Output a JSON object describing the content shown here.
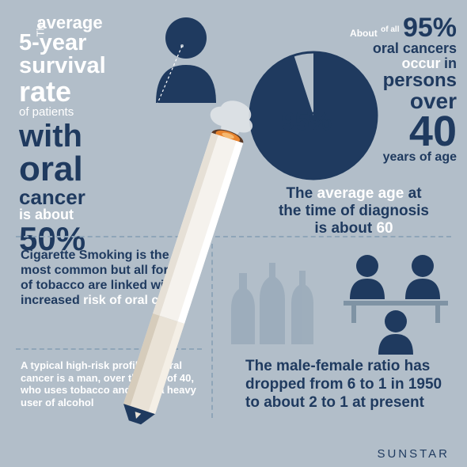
{
  "colors": {
    "bg": "#b2bec9",
    "dark": "#1f3a5f",
    "white": "#ffffff",
    "dash": "#8fa5b8",
    "cig_filter": "#e9e2d6",
    "cig_filter_dark": "#d6ccbb",
    "cig_body": "#f5f2ed",
    "ember": "#e8842f",
    "bottle": "#889bad",
    "table": "#889bad"
  },
  "survival": {
    "l1a": "The",
    "l1b": "average",
    "l2": "5-year",
    "l3": "survival",
    "l4": "rate",
    "l5": "of patients",
    "l6": "with",
    "l7": "oral",
    "l8": "cancer",
    "l9": "is about",
    "l10": "50%"
  },
  "pie": {
    "type": "pie",
    "value": 95,
    "label": "95%",
    "radius": 80,
    "stroke": "#1f3a5f",
    "fill": "#1f3a5f",
    "gap_fill": "#b2bec9"
  },
  "stat95": {
    "l1a": "About",
    "l1b": "of all",
    "l1c": "95%",
    "l2": "oral cancers",
    "l3a": "occur",
    "l3b": "in",
    "l4": "persons",
    "l5": "over",
    "l6": "40",
    "l7": "years of age"
  },
  "avg_age": {
    "p1": "The",
    "p2": "average age",
    "p3": "at",
    "p4": "the time of diagnosis",
    "p5": "is about",
    "p6": "60"
  },
  "cig": {
    "p1": "Cigarette Smoking is the most common but all forms of tobacco are linked with increased",
    "p2": "risk",
    "p3": "of oral cancer"
  },
  "profile": {
    "text": "A typical high-risk profile for oral cancer is a man, over the age of 40, who uses tobacco and/or is a heavy user of alcohol"
  },
  "ratio": {
    "text": "The male-female ratio has dropped from 6 to 1 in 1950 to about 2 to 1 at present"
  },
  "logo": "SUNSTAR"
}
